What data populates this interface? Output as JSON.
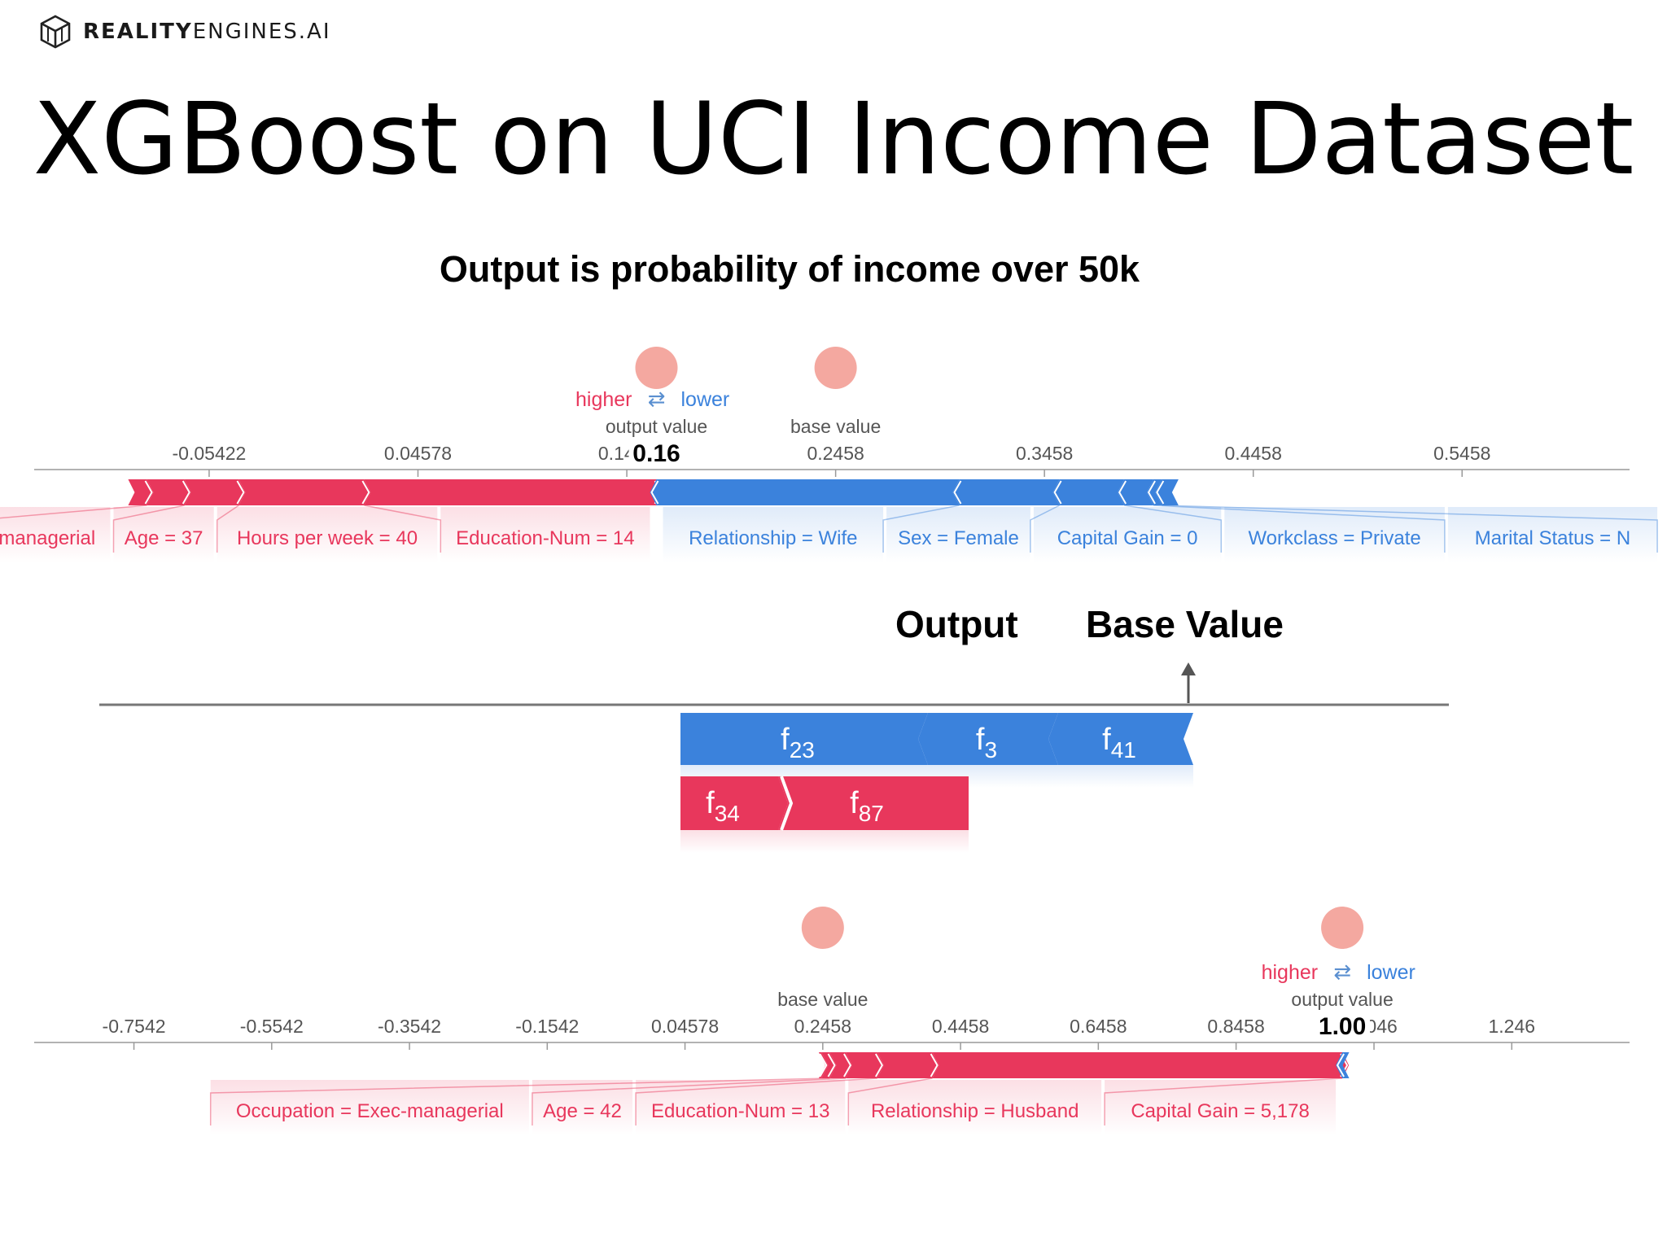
{
  "header": {
    "logo_bold": "REALITY",
    "logo_rest": "ENGINES.AI",
    "title": "XGBoost on UCI Income Dataset",
    "subtitle": "Output is probability of income over 50k"
  },
  "colors": {
    "positive": "#e8375c",
    "negative": "#3b82dc",
    "marker": "#f4a8a0",
    "axis": "#888888"
  },
  "plot_labels": {
    "higher": "higher",
    "lower": "lower",
    "arrows": "⇄",
    "output_value": "output value",
    "base_value": "base value"
  },
  "diagram": {
    "output_label": "Output",
    "base_label": "Base Value",
    "negative_features": [
      {
        "name": "f",
        "sub": "23"
      },
      {
        "name": "f",
        "sub": "3"
      },
      {
        "name": "f",
        "sub": "41"
      }
    ],
    "positive_features": [
      {
        "name": "f",
        "sub": "34"
      },
      {
        "name": "f",
        "sub": "87"
      }
    ]
  },
  "chart_data": [
    {
      "type": "force",
      "base_value": 0.2458,
      "output_value": 0.16,
      "output_label": "0.16",
      "ticks": [
        -0.05422,
        0.04578,
        0.1458,
        0.2458,
        0.3458,
        0.4458,
        0.5458
      ],
      "tick_labels": [
        "-0.05422",
        "0.04578",
        "0.1458",
        "0.2458",
        "0.3458",
        "0.4458",
        "0.5458"
      ],
      "xlim": [
        -0.138,
        0.626
      ],
      "positive": [
        {
          "label": "-managerial",
          "from": -0.093,
          "to": -0.084
        },
        {
          "label": "Age = 37",
          "from": -0.084,
          "to": -0.066
        },
        {
          "label": "Hours per week = 40",
          "from": -0.066,
          "to": -0.04
        },
        {
          "label": "Education-Num = 14",
          "from": -0.04,
          "to": 0.02
        },
        {
          "label": "",
          "from": 0.02,
          "to": 0.16
        }
      ],
      "negative": [
        {
          "label": "Relationship = Wife",
          "from": 0.16,
          "to": 0.305
        },
        {
          "label": "Sex = Female",
          "from": 0.305,
          "to": 0.353
        },
        {
          "label": "Capital Gain = 0",
          "from": 0.353,
          "to": 0.384
        },
        {
          "label": "Workclass = Private",
          "from": 0.384,
          "to": 0.398
        },
        {
          "label": "Marital Status = N",
          "from": 0.398,
          "to": 0.402
        },
        {
          "label": "",
          "from": 0.402,
          "to": 0.41
        }
      ]
    },
    {
      "type": "force",
      "base_value": 0.2458,
      "output_value": 1.0,
      "output_label": "1.00",
      "ticks": [
        -0.7542,
        -0.5542,
        -0.3542,
        -0.1542,
        0.04578,
        0.2458,
        0.4458,
        0.6458,
        0.8458,
        1.046,
        1.246
      ],
      "tick_labels": [
        "-0.7542",
        "-0.5542",
        "-0.3542",
        "-0.1542",
        "0.04578",
        "0.2458",
        "0.4458",
        "0.6458",
        "0.8458",
        "1.046",
        "1.246"
      ],
      "xlim": [
        -0.899,
        1.417
      ],
      "positive": [
        {
          "label": "",
          "from": 0.24,
          "to": 0.244
        },
        {
          "label": "Occupation = Exec-managerial",
          "from": 0.244,
          "to": 0.256
        },
        {
          "label": "Age = 42",
          "from": 0.256,
          "to": 0.279
        },
        {
          "label": "Education-Num = 13",
          "from": 0.279,
          "to": 0.325
        },
        {
          "label": "Relationship = Husband",
          "from": 0.325,
          "to": 0.405
        },
        {
          "label": "Capital Gain = 5,178",
          "from": 0.405,
          "to": 1.0
        }
      ],
      "negative": [
        {
          "label": "",
          "from": 1.0,
          "to": 1.01
        }
      ]
    }
  ]
}
